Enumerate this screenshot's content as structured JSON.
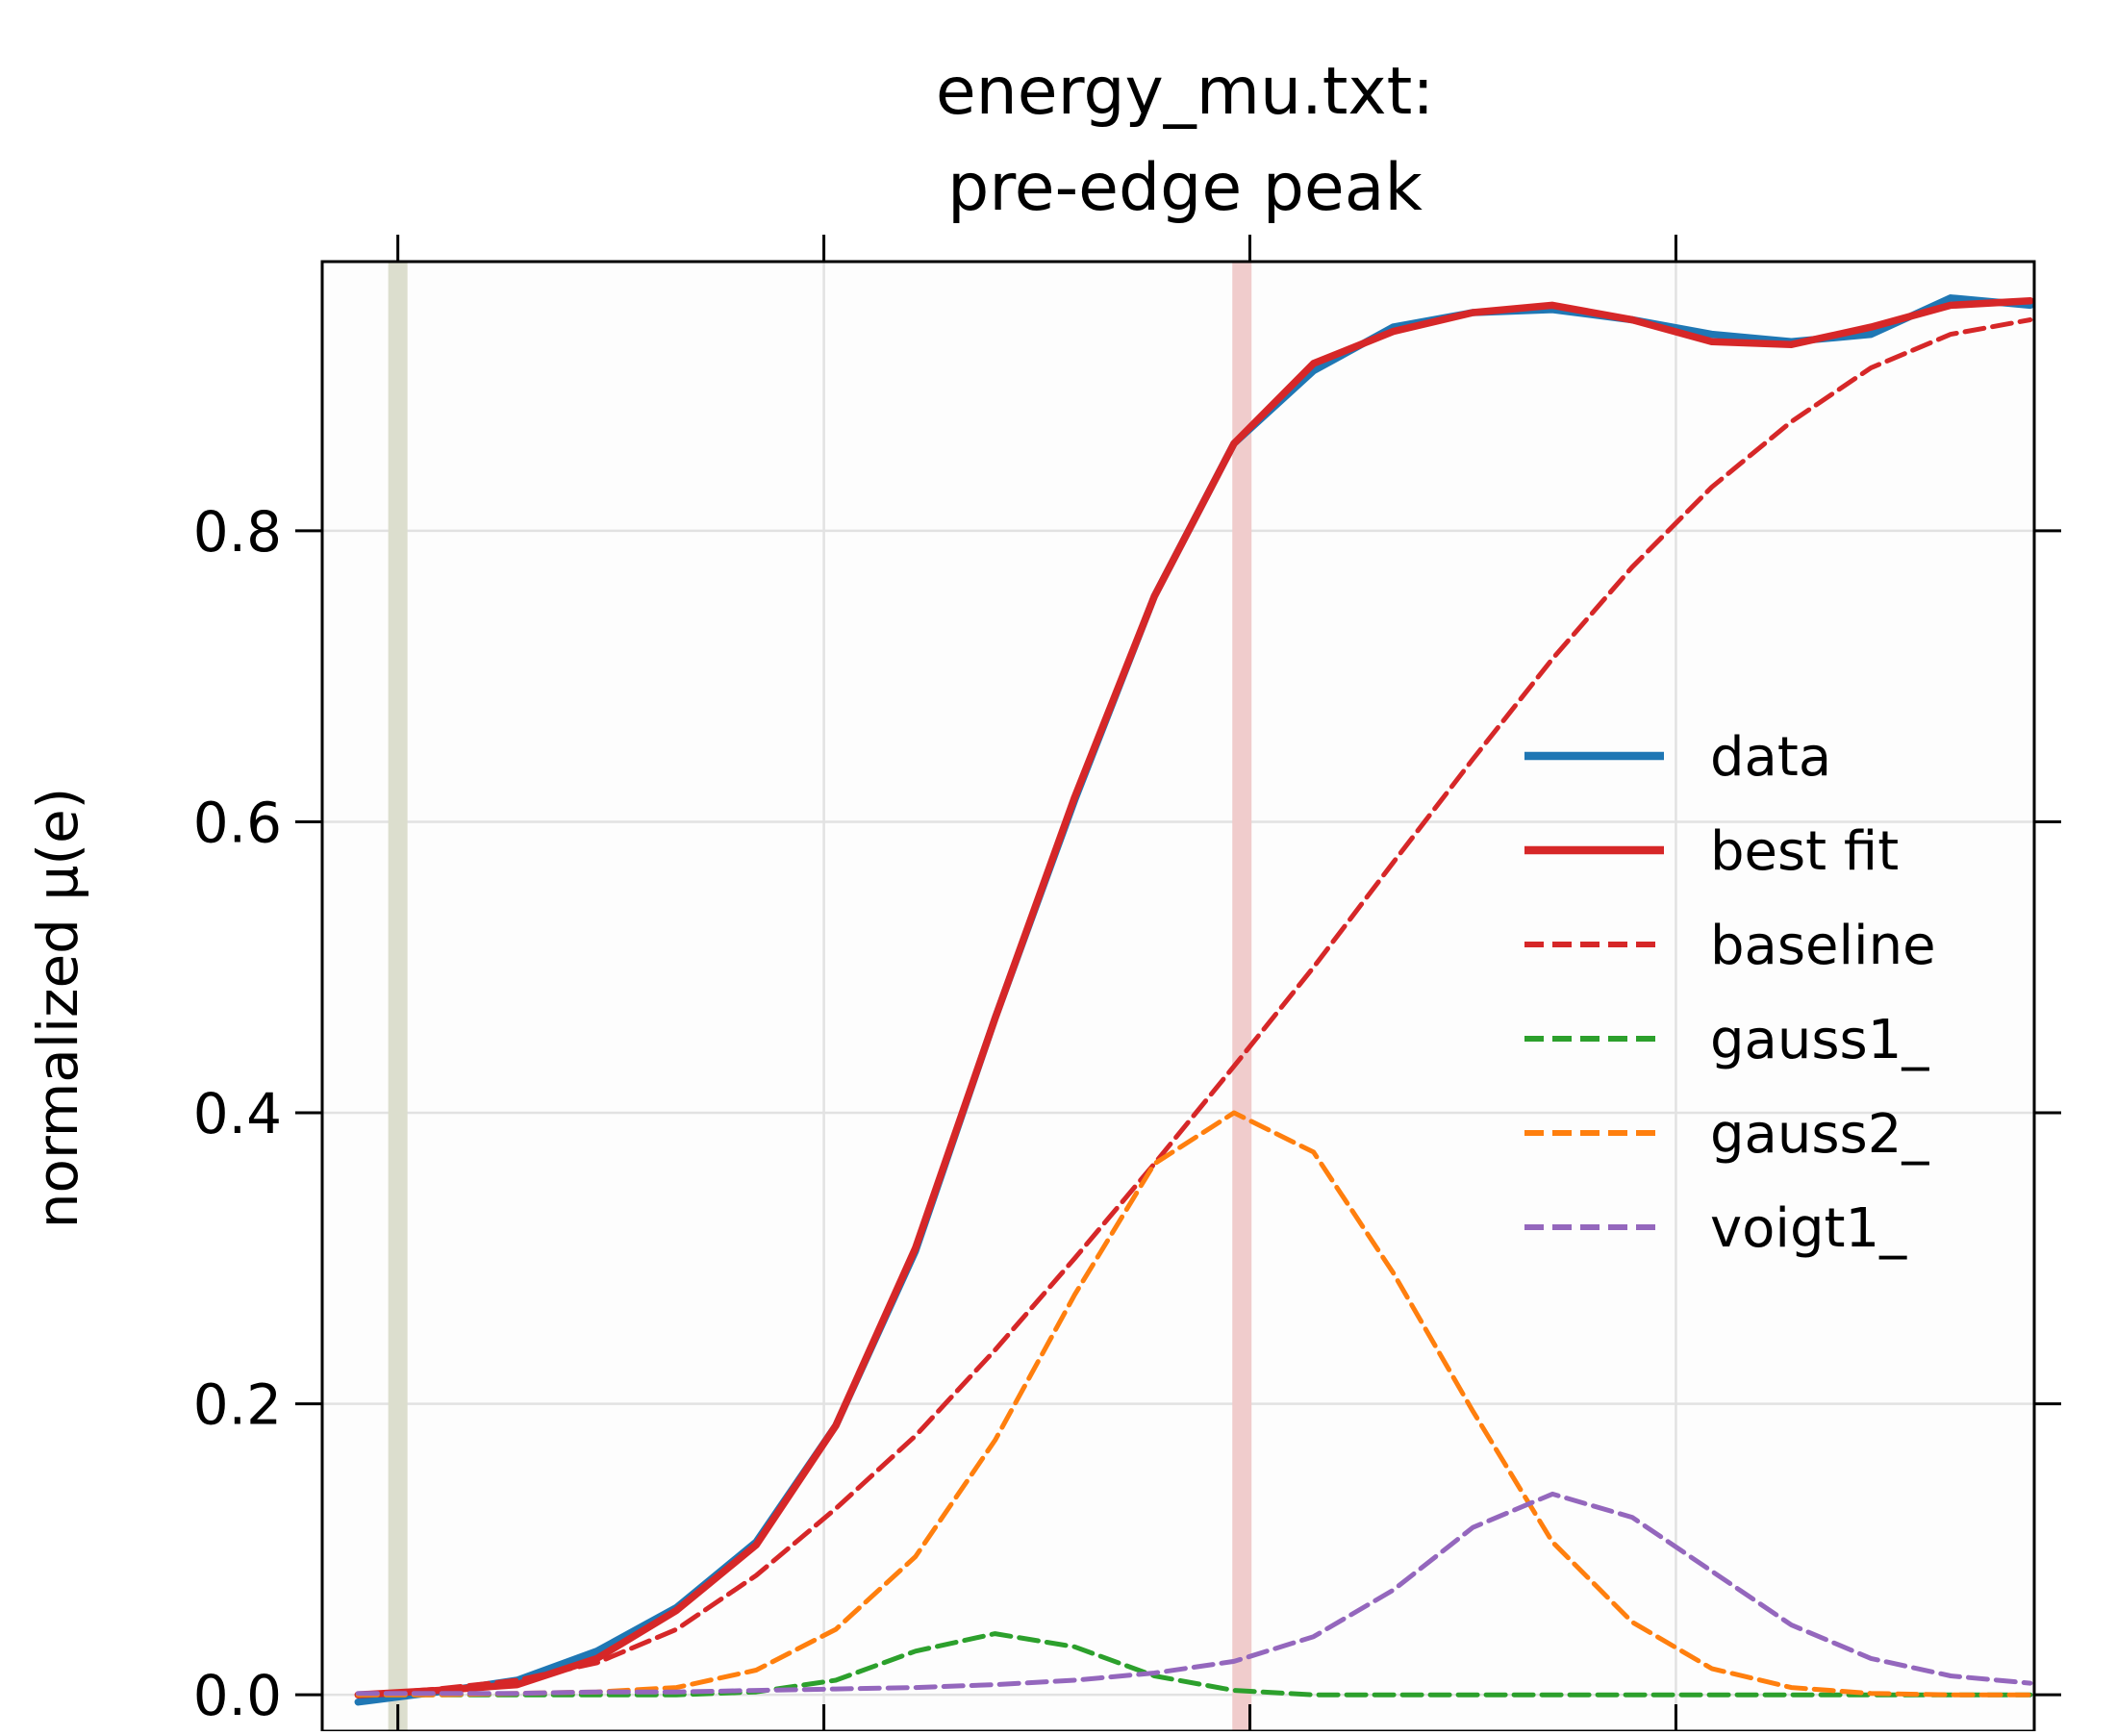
{
  "chart_data": {
    "type": "line",
    "title": [
      "energy_mu.txt:",
      "pre-edge peak"
    ],
    "xlabel": "",
    "ylabel": "normalized μ(e)",
    "x": [
      0,
      1,
      2,
      3,
      4,
      5,
      6,
      7,
      8,
      9,
      10,
      11,
      12,
      13,
      14,
      15,
      16,
      17,
      18,
      19,
      20,
      21
    ],
    "xlim": [
      -0.45,
      21.05
    ],
    "ylim": [
      -0.025,
      0.985
    ],
    "yticks": [
      0.0,
      0.2,
      0.4,
      0.6,
      0.8
    ],
    "ytick_labels": [
      "0.0",
      "0.2",
      "0.4",
      "0.6",
      "0.8"
    ],
    "xticks_unlabeled": [
      0.5,
      5.85,
      11.2,
      16.55
    ],
    "grid": true,
    "legend_position": "right",
    "series": [
      {
        "name": "data",
        "color": "#1f77b4",
        "style": "solid-thick",
        "values": [
          -0.005,
          0.002,
          0.01,
          0.03,
          0.06,
          0.105,
          0.185,
          0.305,
          0.465,
          0.615,
          0.755,
          0.86,
          0.91,
          0.94,
          0.95,
          0.952,
          0.945,
          0.935,
          0.93,
          0.935,
          0.96,
          0.955
        ]
      },
      {
        "name": "best fit",
        "color": "#d62728",
        "style": "solid-thick",
        "values": [
          0.0,
          0.003,
          0.007,
          0.025,
          0.058,
          0.103,
          0.185,
          0.307,
          0.465,
          0.617,
          0.755,
          0.86,
          0.915,
          0.937,
          0.95,
          0.955,
          0.945,
          0.93,
          0.928,
          0.94,
          0.955,
          0.958
        ]
      },
      {
        "name": "baseline",
        "color": "#d62728",
        "style": "dashed",
        "values": [
          0.0,
          0.004,
          0.01,
          0.022,
          0.045,
          0.082,
          0.128,
          0.178,
          0.237,
          0.3,
          0.365,
          0.432,
          0.5,
          0.572,
          0.643,
          0.712,
          0.775,
          0.83,
          0.875,
          0.912,
          0.935,
          0.945
        ]
      },
      {
        "name": "gauss1_",
        "color": "#2ca02c",
        "style": "dashed",
        "values": [
          0.0,
          0.0,
          0.0,
          0.0,
          0.0,
          0.002,
          0.01,
          0.03,
          0.042,
          0.033,
          0.013,
          0.003,
          0.0,
          0.0,
          0.0,
          0.0,
          0.0,
          0.0,
          0.0,
          0.0,
          0.0,
          0.0
        ]
      },
      {
        "name": "gauss2_",
        "color": "#ff7f0e",
        "style": "dashed",
        "values": [
          0.0,
          0.0,
          0.001,
          0.002,
          0.005,
          0.017,
          0.045,
          0.095,
          0.175,
          0.275,
          0.365,
          0.4,
          0.373,
          0.29,
          0.195,
          0.105,
          0.05,
          0.018,
          0.005,
          0.001,
          0.0,
          0.0
        ]
      },
      {
        "name": "voigt1_",
        "color": "#9467bd",
        "style": "dashed",
        "values": [
          0.001,
          0.001,
          0.001,
          0.002,
          0.002,
          0.003,
          0.004,
          0.005,
          0.007,
          0.01,
          0.015,
          0.023,
          0.04,
          0.072,
          0.115,
          0.138,
          0.122,
          0.085,
          0.048,
          0.025,
          0.013,
          0.008
        ]
      }
    ],
    "vertical_bands": [
      {
        "x": 0.5,
        "color": "#dcdece"
      },
      {
        "x": 11.1,
        "color": "#f0cccc"
      }
    ]
  }
}
